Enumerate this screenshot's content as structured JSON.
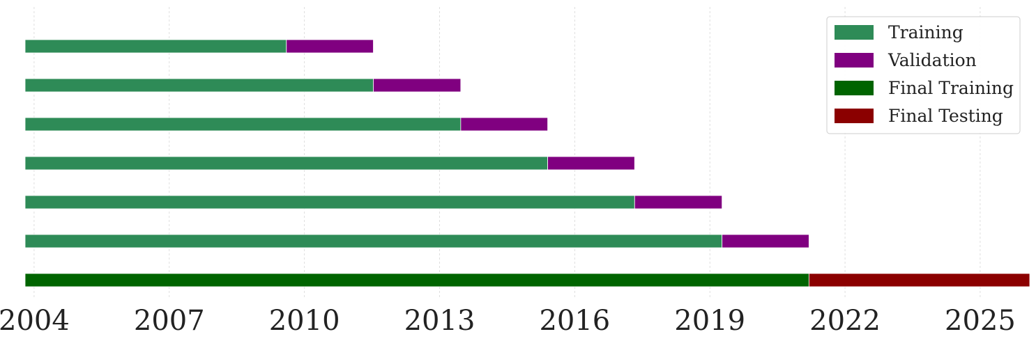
{
  "chart_data": {
    "type": "bar",
    "orientation": "horizontal",
    "stacked": true,
    "title": "",
    "xlabel": "",
    "ylabel": "",
    "xlim": [
      2003.8,
      2026.1
    ],
    "xticks": [
      2004,
      2007,
      2010,
      2013,
      2016,
      2019,
      2022,
      2025
    ],
    "xtick_labels": [
      "2004",
      "2007",
      "2010",
      "2013",
      "2016",
      "2019",
      "2022",
      "2025"
    ],
    "grid": "vertical-dashed",
    "legend_position": "top-right",
    "series": [
      {
        "name": "Training",
        "color": "#2e8b57",
        "bars": [
          {
            "row": 0,
            "start": 2003.8,
            "end": 2009.6
          },
          {
            "row": 1,
            "start": 2003.8,
            "end": 2011.53
          },
          {
            "row": 2,
            "start": 2003.8,
            "end": 2013.47
          },
          {
            "row": 3,
            "start": 2003.8,
            "end": 2015.4
          },
          {
            "row": 4,
            "start": 2003.8,
            "end": 2017.33
          },
          {
            "row": 5,
            "start": 2003.8,
            "end": 2019.27
          }
        ]
      },
      {
        "name": "Validation",
        "color": "#800080",
        "bars": [
          {
            "row": 0,
            "start": 2009.6,
            "end": 2011.53
          },
          {
            "row": 1,
            "start": 2011.53,
            "end": 2013.47
          },
          {
            "row": 2,
            "start": 2013.47,
            "end": 2015.4
          },
          {
            "row": 3,
            "start": 2015.4,
            "end": 2017.33
          },
          {
            "row": 4,
            "start": 2017.33,
            "end": 2019.27
          },
          {
            "row": 5,
            "start": 2019.27,
            "end": 2021.2
          }
        ]
      },
      {
        "name": "Final Training",
        "color": "#006400",
        "bars": [
          {
            "row": 6,
            "start": 2003.8,
            "end": 2021.2
          }
        ]
      },
      {
        "name": "Final Testing",
        "color": "#8b0000",
        "bars": [
          {
            "row": 6,
            "start": 2021.2,
            "end": 2026.1
          }
        ]
      }
    ],
    "legend": [
      "Training",
      "Validation",
      "Final Training",
      "Final Testing"
    ]
  }
}
